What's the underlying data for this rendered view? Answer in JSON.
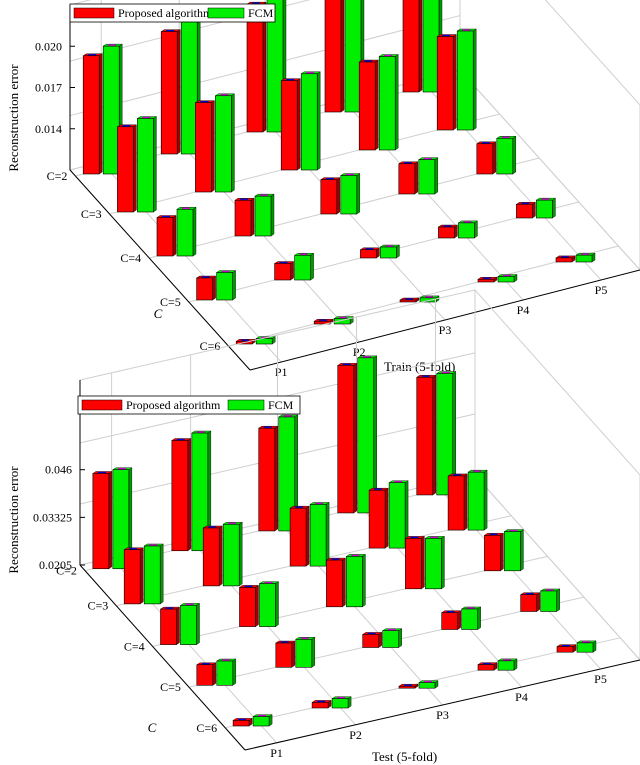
{
  "colors": {
    "proposed": "#ff0000",
    "fcm": "#00ee00",
    "error_bar_low": "#0000cc",
    "error_bar_high": "#cc00cc"
  },
  "chart_data": [
    {
      "type": "bar",
      "subtype": "3d-grouped-bar",
      "legend": [
        "Proposed algorithm",
        "FCM"
      ],
      "legend_position": "top-left",
      "x": {
        "label": "Train   (5-fold)",
        "categories": [
          "P1",
          "P2",
          "P3",
          "P4",
          "P5"
        ]
      },
      "y": {
        "label": "C",
        "categories": [
          "C=2",
          "C=3",
          "C=4",
          "C=5",
          "C=6"
        ]
      },
      "z": {
        "label": "Reconstruction error",
        "ticks": [
          "0.014",
          "0.017",
          "0.020"
        ],
        "range": [
          0.011,
          0.023
        ]
      },
      "grid": true,
      "series": [
        {
          "name": "Proposed algorithm",
          "values": [
            [
              0.0196,
              0.0199,
              0.0203,
              0.0205,
              0.0205
            ],
            [
              0.0172,
              0.0175,
              0.0175,
              0.0174,
              0.0178
            ],
            [
              0.0138,
              0.0136,
              0.0135,
              0.0132,
              0.0132
            ],
            [
              0.0126,
              0.0122,
              0.0116,
              0.0118,
              0.012
            ],
            [
              0.0112,
              0.0112,
              0.0111,
              0.0112,
              0.0113
            ]
          ]
        },
        {
          "name": "FCM",
          "values": [
            [
              0.0203,
              0.0209,
              0.0212,
              0.0213,
              0.0213
            ],
            [
              0.0178,
              0.018,
              0.018,
              0.0178,
              0.0182
            ],
            [
              0.0144,
              0.0139,
              0.0138,
              0.0135,
              0.0136
            ],
            [
              0.013,
              0.0128,
              0.0118,
              0.0121,
              0.0123
            ],
            [
              0.0114,
              0.0114,
              0.0113,
              0.0114,
              0.0115
            ]
          ]
        }
      ]
    },
    {
      "type": "bar",
      "subtype": "3d-grouped-bar",
      "legend": [
        "Proposed algorithm",
        "FCM"
      ],
      "legend_position": "top-left",
      "x": {
        "label": "Test   (5-fold)",
        "categories": [
          "P1",
          "P2",
          "P3",
          "P4",
          "P5"
        ]
      },
      "y": {
        "label": "C",
        "categories": [
          "C=2",
          "C=3",
          "C=4",
          "C=5",
          "C=6"
        ]
      },
      "z": {
        "label": "Reconstruction error",
        "ticks": [
          "0.0205",
          "0.03325",
          "0.046"
        ],
        "range": [
          0.0205,
          0.07
        ]
      },
      "grid": true,
      "series": [
        {
          "name": "Proposed algorithm",
          "values": [
            [
              0.046,
              0.05,
              0.048,
              0.06,
              0.052
            ],
            [
              0.035,
              0.036,
              0.036,
              0.036,
              0.035
            ],
            [
              0.03,
              0.031,
              0.033,
              0.034,
              0.03
            ],
            [
              0.026,
              0.027,
              0.024,
              0.025,
              0.025
            ],
            [
              0.022,
              0.022,
              0.021,
              0.022,
              0.022
            ]
          ]
        },
        {
          "name": "FCM",
          "values": [
            [
              0.047,
              0.052,
              0.051,
              0.062,
              0.053
            ],
            [
              0.036,
              0.037,
              0.037,
              0.038,
              0.036
            ],
            [
              0.031,
              0.032,
              0.034,
              0.034,
              0.031
            ],
            [
              0.027,
              0.028,
              0.025,
              0.026,
              0.026
            ],
            [
              0.023,
              0.023,
              0.022,
              0.023,
              0.023
            ]
          ]
        }
      ]
    }
  ]
}
